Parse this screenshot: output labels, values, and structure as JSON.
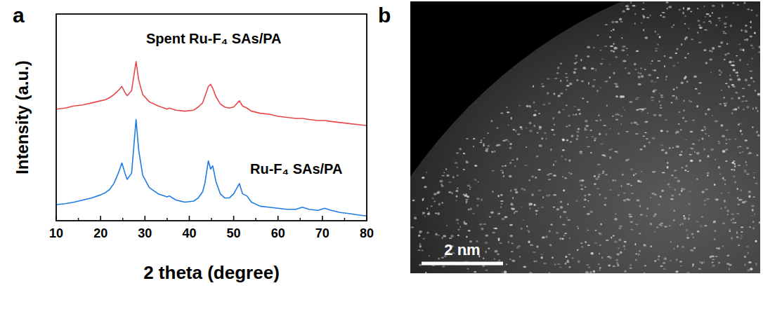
{
  "chart_data": [
    {
      "type": "line",
      "panel": "a",
      "x_label": "2 theta (degree)",
      "y_label": "Intensity (a.u.)",
      "xlim": [
        10,
        80
      ],
      "xticks": [
        10,
        20,
        30,
        40,
        50,
        60,
        70,
        80
      ],
      "ylim": [
        0,
        100
      ],
      "yticks": [],
      "tick_labels": "x",
      "grid": false,
      "x": [
        10,
        12,
        14,
        16,
        18,
        20,
        21,
        22,
        23,
        24,
        24.8,
        25.5,
        26,
        27,
        28,
        28.6,
        29.5,
        31,
        33,
        35,
        35.5,
        37,
        39,
        41,
        42,
        43,
        43.5,
        44.3,
        44.8,
        45.3,
        46,
        47,
        48,
        49,
        50,
        51.3,
        52,
        53,
        54,
        56,
        58,
        60,
        62,
        64,
        65.5,
        67,
        69,
        70.5,
        72,
        74,
        76,
        78,
        80
      ],
      "series": [
        {
          "name": "Spent Ru-F₄ SAs/PA",
          "color": "#e8474a",
          "values": [
            54,
            54.5,
            55.5,
            56,
            57,
            58,
            58.5,
            59.5,
            61,
            63,
            65,
            62,
            60.5,
            63,
            77,
            68,
            61,
            57.5,
            55.5,
            54,
            54.5,
            53.5,
            53,
            53.5,
            55,
            57,
            60,
            65,
            66,
            64,
            60,
            56.5,
            55,
            54.5,
            55,
            58,
            55.5,
            54.5,
            53,
            52,
            51.5,
            50.5,
            50,
            49.5,
            49.5,
            49,
            48.5,
            48.5,
            48,
            47.5,
            47,
            46.5,
            46
          ]
        },
        {
          "name": "Ru-F₄ SAs/PA",
          "color": "#1e7be6",
          "values": [
            7.8,
            8.2,
            9,
            10,
            11,
            12.5,
            13.5,
            15,
            18,
            23,
            28,
            23,
            20,
            23,
            49,
            34,
            22,
            16,
            13,
            11.5,
            12,
            10,
            9,
            9.5,
            11,
            14,
            18,
            29,
            25,
            26.5,
            19,
            13,
            11,
            11,
            13,
            18,
            13,
            12,
            9,
            7,
            6.5,
            6,
            5.5,
            5.5,
            6.5,
            5.5,
            5,
            6,
            5,
            4,
            3.5,
            2.8,
            2.3
          ]
        }
      ]
    },
    {
      "type": "image",
      "panel": "b",
      "scale_bar_label": "2 nm"
    }
  ]
}
